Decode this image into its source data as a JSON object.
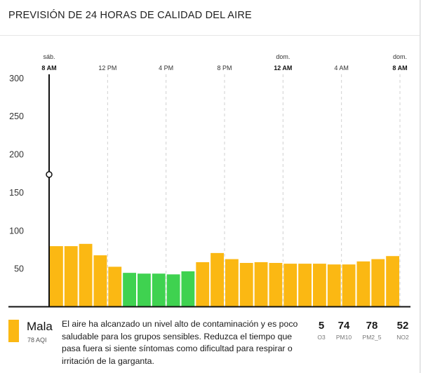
{
  "title": "PREVISIÓN DE 24 HORAS DE CALIDAD DEL AIRE",
  "colors": {
    "moderate": "#fbb813",
    "good": "#3fd250",
    "axis": "#111111",
    "grid": "#d0d0d0"
  },
  "chart_data": {
    "type": "bar",
    "title": "PREVISIÓN DE 24 HORAS DE CALIDAD DEL AIRE",
    "ylim": [
      0,
      315
    ],
    "yticks": [
      50,
      100,
      150,
      200,
      250,
      300
    ],
    "current_marker_value": 173,
    "time_labels": [
      {
        "hour": 0,
        "day": "sáb.",
        "time": "8 AM",
        "bold": true
      },
      {
        "hour": 4,
        "day": "",
        "time": "12 PM",
        "bold": false
      },
      {
        "hour": 8,
        "day": "",
        "time": "4 PM",
        "bold": false
      },
      {
        "hour": 12,
        "day": "",
        "time": "8 PM",
        "bold": false
      },
      {
        "hour": 16,
        "day": "dom.",
        "time": "12 AM",
        "bold": true
      },
      {
        "hour": 20,
        "day": "",
        "time": "4 AM",
        "bold": false
      },
      {
        "hour": 24,
        "day": "dom.",
        "time": "8 AM",
        "bold": true
      }
    ],
    "values": [
      79,
      79,
      82,
      67,
      52,
      44,
      43,
      43,
      42,
      46,
      58,
      70,
      62,
      57,
      58,
      57,
      56,
      56,
      56,
      55,
      55,
      59,
      62,
      66
    ],
    "categories_color": [
      "moderate",
      "moderate",
      "moderate",
      "moderate",
      "moderate",
      "good",
      "good",
      "good",
      "good",
      "good",
      "moderate",
      "moderate",
      "moderate",
      "moderate",
      "moderate",
      "moderate",
      "moderate",
      "moderate",
      "moderate",
      "moderate",
      "moderate",
      "moderate",
      "moderate",
      "moderate"
    ]
  },
  "footer": {
    "level": "Mala",
    "aqi": "78 AQI",
    "description": "El aire ha alcanzado un nivel alto de contaminación y es poco saludable para los grupos sensibles. Reduzca el tiempo que pasa fuera si siente síntomas como dificultad para respirar o irritación de la garganta.",
    "pollutants": [
      {
        "value": "5",
        "name": "O3"
      },
      {
        "value": "74",
        "name": "PM10"
      },
      {
        "value": "78",
        "name": "PM2_5"
      },
      {
        "value": "52",
        "name": "NO2"
      }
    ]
  }
}
